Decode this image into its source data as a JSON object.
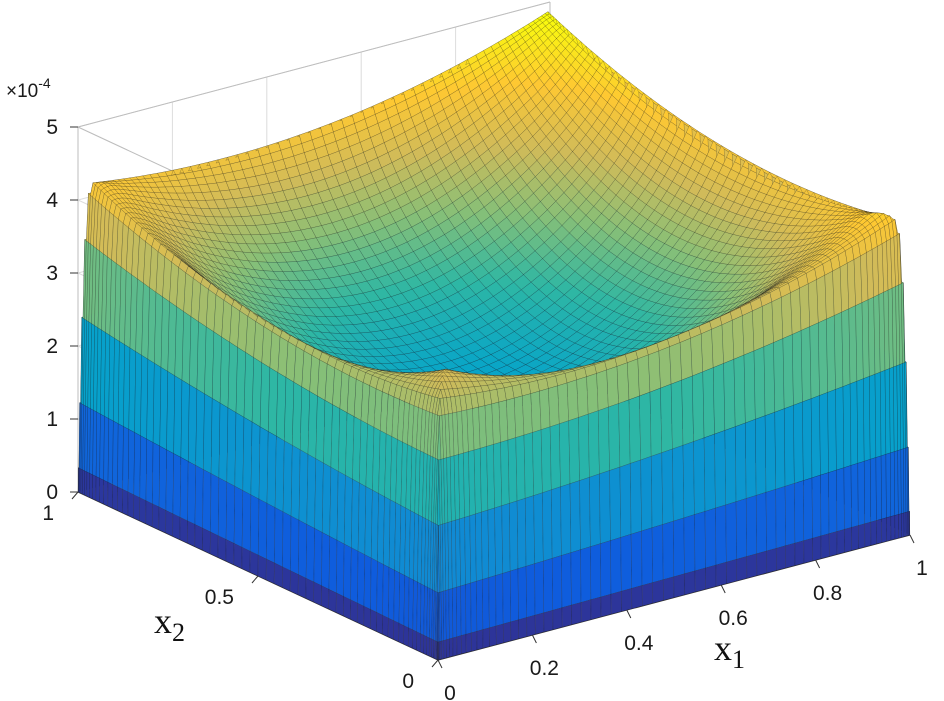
{
  "chart_data": {
    "type": "surface",
    "title": "",
    "zlim": [
      0,
      5
    ],
    "z_exponent_label": "×10",
    "z_exponent_power": "-4",
    "xlabel": "x",
    "xlabel_sub": "1",
    "ylabel": "x",
    "ylabel_sub": "2",
    "grid": true,
    "colormap": [
      "#352a87",
      "#0f5cdd",
      "#1481d6",
      "#06a4ca",
      "#2eb7a4",
      "#87bf77",
      "#d1bb59",
      "#fec832",
      "#f9fb0e"
    ],
    "x_ticks": [
      "0",
      "0.2",
      "0.4",
      "0.6",
      "0.8",
      "1"
    ],
    "y_ticks": [
      "0",
      "0.5",
      "1"
    ],
    "z_ticks": [
      "0",
      "1",
      "2",
      "3",
      "4",
      "5"
    ],
    "x": [
      0,
      0.1,
      0.2,
      0.3,
      0.4,
      0.5,
      0.6,
      0.7,
      0.8,
      0.9,
      1
    ],
    "y": [
      0,
      0.1,
      0.2,
      0.3,
      0.4,
      0.5,
      0.6,
      0.7,
      0.8,
      0.9,
      1
    ],
    "z_description": "values in units of 1e-4; plateau near edges, saddle-shaped dip in interior",
    "corner_values": {
      "x0_y0": 3.0,
      "x0_y1": 4.1,
      "x1_y0": 4.0,
      "x1_y1": 4.9
    },
    "interior_min": 1.4
  }
}
